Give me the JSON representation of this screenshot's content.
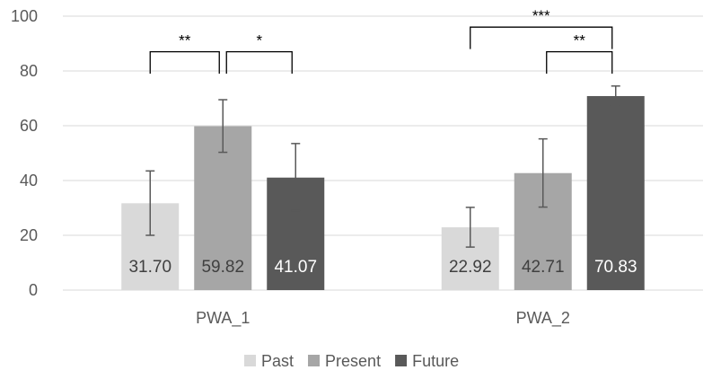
{
  "chart_data": {
    "type": "bar",
    "categories": [
      "PWA_1",
      "PWA_2"
    ],
    "series": [
      {
        "name": "Past",
        "values": [
          31.7,
          22.92
        ],
        "labels": [
          "31.70",
          "22.92"
        ],
        "error_low": [
          20.0,
          15.7
        ],
        "error_high": [
          43.5,
          30.2
        ],
        "color": "#d9d9d9",
        "label_color": "#404040"
      },
      {
        "name": "Present",
        "values": [
          59.82,
          42.71
        ],
        "labels": [
          "59.82",
          "42.71"
        ],
        "error_low": [
          50.3,
          30.3
        ],
        "error_high": [
          69.5,
          55.2
        ],
        "color": "#a6a6a6",
        "label_color": "#404040"
      },
      {
        "name": "Future",
        "values": [
          41.07,
          70.83
        ],
        "labels": [
          "41.07",
          "70.83"
        ],
        "error_low": [
          29.0,
          67.3
        ],
        "error_high": [
          53.5,
          74.5
        ],
        "color": "#595959",
        "label_color": "#ffffff"
      }
    ],
    "ylim": [
      0,
      100
    ],
    "yticks": [
      "0",
      "20",
      "40",
      "60",
      "80",
      "100"
    ],
    "grid": true,
    "legend": "bottom",
    "significance": [
      {
        "category": 0,
        "from_series": 0,
        "to_series": 1,
        "y": 87,
        "label": "**"
      },
      {
        "category": 0,
        "from_series": 1,
        "to_series": 2,
        "y": 87,
        "label": "*"
      },
      {
        "category": 1,
        "from_series": 0,
        "to_series": 2,
        "y": 96,
        "label": "***"
      },
      {
        "category": 1,
        "from_series": 1,
        "to_series": 2,
        "y": 87,
        "label": "**"
      }
    ]
  }
}
